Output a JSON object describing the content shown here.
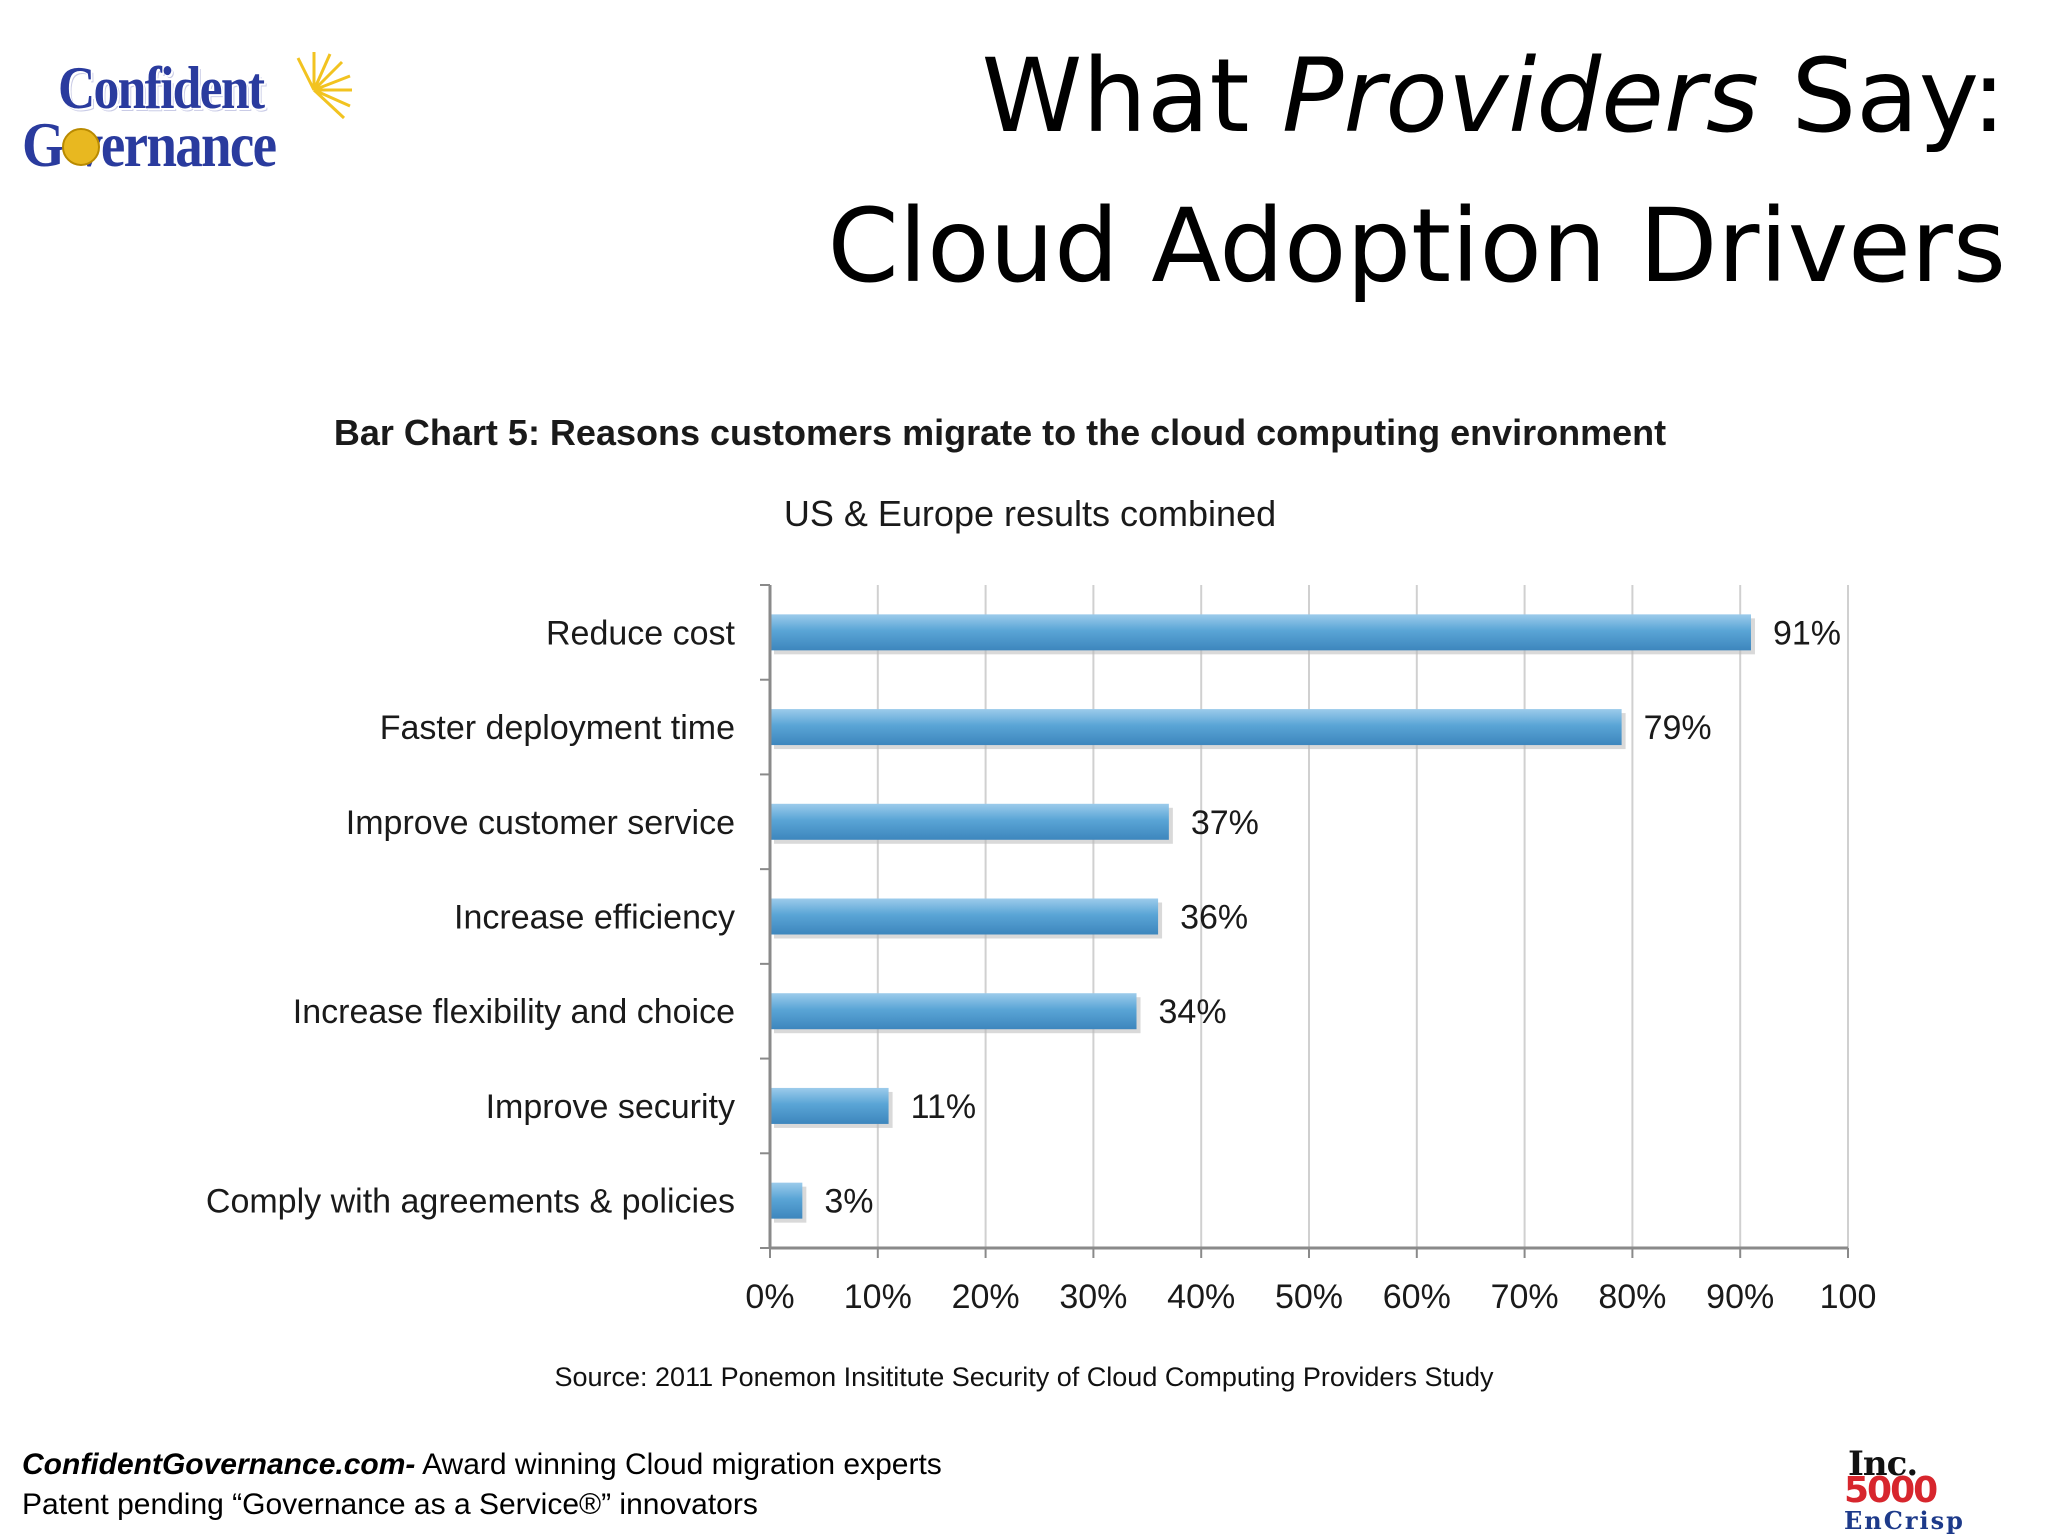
{
  "logo": {
    "line1": "Confident",
    "line2": "G  vernance"
  },
  "title": {
    "line1_pre": "What ",
    "line1_em": "Providers",
    "line1_post": " Say:",
    "line2": "Cloud Adoption Drivers"
  },
  "chart_data": {
    "type": "bar",
    "orientation": "horizontal",
    "title": "Bar Chart 5: Reasons customers migrate to the cloud computing environment",
    "subtitle": "US & Europe results combined",
    "categories": [
      "Reduce cost",
      "Faster deployment time",
      "Improve customer service",
      "Increase efficiency",
      "Increase flexibility and choice",
      "Improve security",
      "Comply with agreements & policies"
    ],
    "values": [
      91,
      79,
      37,
      36,
      34,
      11,
      3
    ],
    "value_labels": [
      "91%",
      "79%",
      "37%",
      "36%",
      "34%",
      "11%",
      "3%"
    ],
    "xlim": [
      0,
      100
    ],
    "x_ticks": [
      "0%",
      "10%",
      "20%",
      "30%",
      "40%",
      "50%",
      "60%",
      "70%",
      "80%",
      "90%",
      "100"
    ],
    "grid": true,
    "bar_color": "#5aa5d6"
  },
  "source": "Source: 2011 Ponemon Insititute  Security of Cloud Computing Providers Study",
  "footer": {
    "line1_bold": "ConfidentGovernance.com-",
    "line1_rest": " Award winning Cloud migration experts",
    "line2": "Patent pending  “Governance as a Service®” innovators"
  },
  "badge": {
    "top": "Inc.",
    "middle": "5000",
    "bottom": "EnCrisp"
  }
}
